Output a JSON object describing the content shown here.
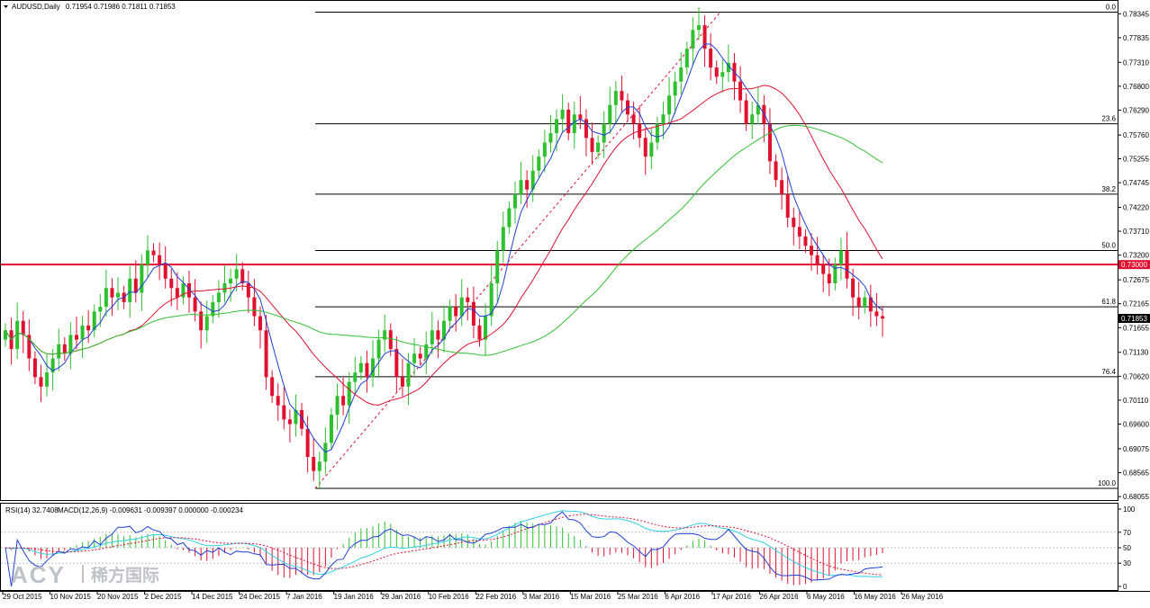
{
  "header": {
    "symbol": "AUDUSD,Daily",
    "ohlc": "0.71954 0.71986 0.71811 0.71853"
  },
  "indicator_header": {
    "rsi": "RSI(14) 32.7408",
    "macd": "MACD(12,26,9) -0.009631 -0.009397 0.000000 -0.000234"
  },
  "watermark": {
    "brand": "ACY",
    "cn": "稀方国际"
  },
  "chart_data": [
    {
      "type": "candlestick",
      "title": "AUDUSD,Daily",
      "y_ticks": [
        "0.78345",
        "0.77835",
        "0.77310",
        "0.76800",
        "0.76290",
        "0.75760",
        "0.75255",
        "0.74745",
        "0.74220",
        "0.73710",
        "0.73200",
        "0.72675",
        "0.72165",
        "0.71655",
        "0.71130",
        "0.70620",
        "0.70110",
        "0.69600",
        "0.69075",
        "0.68565",
        "0.68055"
      ],
      "ylim": [
        0.68,
        0.786
      ],
      "x_ticks": [
        "29 Oct 2015",
        "10 Nov 2015",
        "20 Nov 2015",
        "2 Dec 2015",
        "14 Dec 2015",
        "24 Dec 2015",
        "7 Jan 2016",
        "19 Jan 2016",
        "29 Jan 2016",
        "10 Feb 2016",
        "22 Feb 2016",
        "3 Mar 2016",
        "15 Mar 2016",
        "25 Mar 2016",
        "6 Apr 2016",
        "17 Apr 2016",
        "26 Apr 2016",
        "6 May 2016",
        "16 May 2016",
        "26 May 2016"
      ],
      "current_price": "0.71853",
      "horizontal_level": {
        "label": "0.73000",
        "value": 0.73,
        "color": "#e0102f"
      },
      "fibonacci": {
        "levels": [
          {
            "label": "0.0",
            "value": 0.7838
          },
          {
            "label": "23.6",
            "value": 0.76
          },
          {
            "label": "38.2",
            "value": 0.745
          },
          {
            "label": "50.0",
            "value": 0.733
          },
          {
            "label": "61.8",
            "value": 0.721
          },
          {
            "label": "76.4",
            "value": 0.7061
          },
          {
            "label": "100.0",
            "value": 0.6823
          }
        ],
        "trend_line": {
          "from": [
            0.6823
          ],
          "to": [
            0.7838
          ]
        }
      },
      "colors": {
        "bull": "#2fc02f",
        "bear": "#e0102f",
        "ma_fast": "#1f3fd6",
        "ma_mid": "#e0102f",
        "ma_slow": "#30c030"
      },
      "series": {
        "close": [
          0.716,
          0.712,
          0.718,
          0.715,
          0.71,
          0.706,
          0.704,
          0.707,
          0.71,
          0.713,
          0.711,
          0.715,
          0.714,
          0.717,
          0.716,
          0.72,
          0.721,
          0.725,
          0.723,
          0.724,
          0.722,
          0.727,
          0.724,
          0.73,
          0.733,
          0.732,
          0.73,
          0.727,
          0.725,
          0.723,
          0.726,
          0.723,
          0.72,
          0.716,
          0.719,
          0.722,
          0.724,
          0.726,
          0.727,
          0.729,
          0.726,
          0.723,
          0.719,
          0.716,
          0.706,
          0.702,
          0.7,
          0.697,
          0.696,
          0.699,
          0.695,
          0.689,
          0.686,
          0.688,
          0.692,
          0.698,
          0.702,
          0.7,
          0.705,
          0.707,
          0.709,
          0.706,
          0.71,
          0.714,
          0.716,
          0.712,
          0.706,
          0.704,
          0.709,
          0.711,
          0.71,
          0.713,
          0.716,
          0.714,
          0.718,
          0.721,
          0.719,
          0.723,
          0.722,
          0.717,
          0.714,
          0.719,
          0.726,
          0.733,
          0.738,
          0.742,
          0.745,
          0.748,
          0.746,
          0.75,
          0.753,
          0.756,
          0.758,
          0.761,
          0.763,
          0.758,
          0.762,
          0.761,
          0.757,
          0.754,
          0.756,
          0.76,
          0.764,
          0.767,
          0.765,
          0.762,
          0.76,
          0.757,
          0.753,
          0.756,
          0.76,
          0.762,
          0.766,
          0.769,
          0.772,
          0.776,
          0.78,
          0.781,
          0.776,
          0.772,
          0.77,
          0.771,
          0.773,
          0.769,
          0.765,
          0.76,
          0.762,
          0.764,
          0.76,
          0.752,
          0.748,
          0.745,
          0.74,
          0.738,
          0.736,
          0.734,
          0.732,
          0.73,
          0.728,
          0.726,
          0.73,
          0.733,
          0.727,
          0.723,
          0.721,
          0.723,
          0.72,
          0.719,
          0.7185
        ]
      }
    },
    {
      "type": "line",
      "title": "RSI(14) 32.7408 MACD(12,26,9) -0.009631 -0.009397 0.000000 -0.000234",
      "y_ticks": [
        "100",
        "70",
        "50",
        "30",
        "0"
      ],
      "ylim": [
        0,
        100
      ],
      "colors": {
        "rsi": "#1f3fd6",
        "macd_line": "#30d0e8",
        "signal": "#e0102f",
        "hist_pos": "#30c030",
        "hist_neg": "#e0102f"
      }
    }
  ]
}
